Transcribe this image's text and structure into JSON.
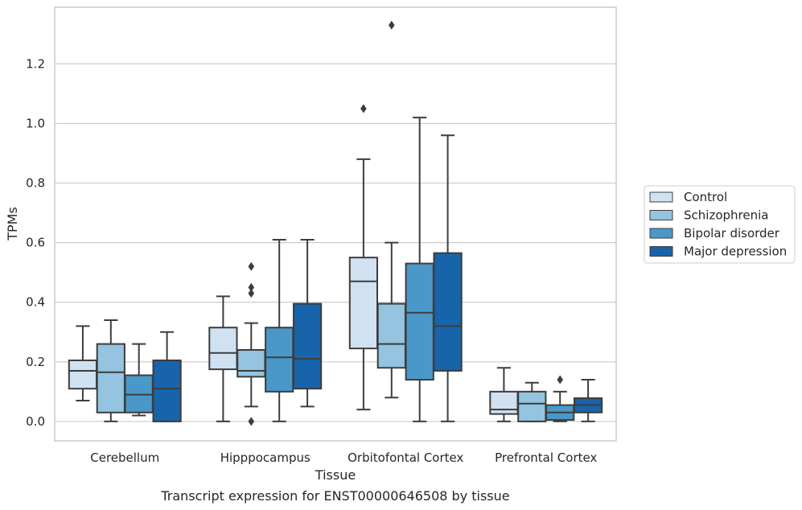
{
  "chart_data": {
    "type": "boxplot",
    "title": "",
    "caption": "Transcript expression for ENST00000646508 by tissue",
    "xlabel": "Tissue",
    "ylabel": "TPMs",
    "ylim": [
      -0.065,
      1.39
    ],
    "yticks": [
      0.0,
      0.2,
      0.4,
      0.6,
      0.8,
      1.0,
      1.2
    ],
    "ytick_labels": [
      "0.0",
      "0.2",
      "0.4",
      "0.6",
      "0.8",
      "1.0",
      "1.2"
    ],
    "grid": "horizontal",
    "legend_position": "right",
    "categories": [
      "Cerebellum",
      "Hipppocampus",
      "Orbitofontal Cortex",
      "Prefrontal Cortex"
    ],
    "series": [
      {
        "name": "Control",
        "color": "#d0e1f2",
        "boxes": [
          {
            "whislo": 0.07,
            "q1": 0.11,
            "med": 0.17,
            "q3": 0.205,
            "whishi": 0.32,
            "fliers": []
          },
          {
            "whislo": 0.0,
            "q1": 0.175,
            "med": 0.23,
            "q3": 0.315,
            "whishi": 0.42,
            "fliers": []
          },
          {
            "whislo": 0.04,
            "q1": 0.245,
            "med": 0.47,
            "q3": 0.55,
            "whishi": 0.88,
            "fliers": [
              1.05
            ]
          },
          {
            "whislo": 0.0,
            "q1": 0.025,
            "med": 0.04,
            "q3": 0.1,
            "whishi": 0.18,
            "fliers": []
          }
        ]
      },
      {
        "name": "Schizophrenia",
        "color": "#94c4df",
        "boxes": [
          {
            "whislo": 0.0,
            "q1": 0.03,
            "med": 0.165,
            "q3": 0.26,
            "whishi": 0.34,
            "fliers": []
          },
          {
            "whislo": 0.05,
            "q1": 0.15,
            "med": 0.17,
            "q3": 0.24,
            "whishi": 0.33,
            "fliers": [
              0.52,
              0.45,
              0.43,
              0.0
            ]
          },
          {
            "whislo": 0.08,
            "q1": 0.18,
            "med": 0.26,
            "q3": 0.395,
            "whishi": 0.6,
            "fliers": [
              1.33
            ]
          },
          {
            "whislo": 0.0,
            "q1": 0.0,
            "med": 0.06,
            "q3": 0.1,
            "whishi": 0.13,
            "fliers": []
          }
        ]
      },
      {
        "name": "Bipolar disorder",
        "color": "#4a98c9",
        "boxes": [
          {
            "whislo": 0.02,
            "q1": 0.03,
            "med": 0.09,
            "q3": 0.155,
            "whishi": 0.26,
            "fliers": []
          },
          {
            "whislo": 0.0,
            "q1": 0.1,
            "med": 0.215,
            "q3": 0.315,
            "whishi": 0.61,
            "fliers": []
          },
          {
            "whislo": 0.0,
            "q1": 0.14,
            "med": 0.365,
            "q3": 0.53,
            "whishi": 1.02,
            "fliers": []
          },
          {
            "whislo": 0.0,
            "q1": 0.005,
            "med": 0.03,
            "q3": 0.055,
            "whishi": 0.1,
            "fliers": [
              0.14
            ]
          }
        ]
      },
      {
        "name": "Major depression",
        "color": "#1764ab",
        "boxes": [
          {
            "whislo": 0.0,
            "q1": 0.0,
            "med": 0.11,
            "q3": 0.205,
            "whishi": 0.3,
            "fliers": []
          },
          {
            "whislo": 0.05,
            "q1": 0.11,
            "med": 0.21,
            "q3": 0.395,
            "whishi": 0.61,
            "fliers": []
          },
          {
            "whislo": 0.0,
            "q1": 0.17,
            "med": 0.32,
            "q3": 0.565,
            "whishi": 0.96,
            "fliers": []
          },
          {
            "whislo": 0.0,
            "q1": 0.03,
            "med": 0.055,
            "q3": 0.078,
            "whishi": 0.14,
            "fliers": []
          }
        ]
      }
    ]
  }
}
